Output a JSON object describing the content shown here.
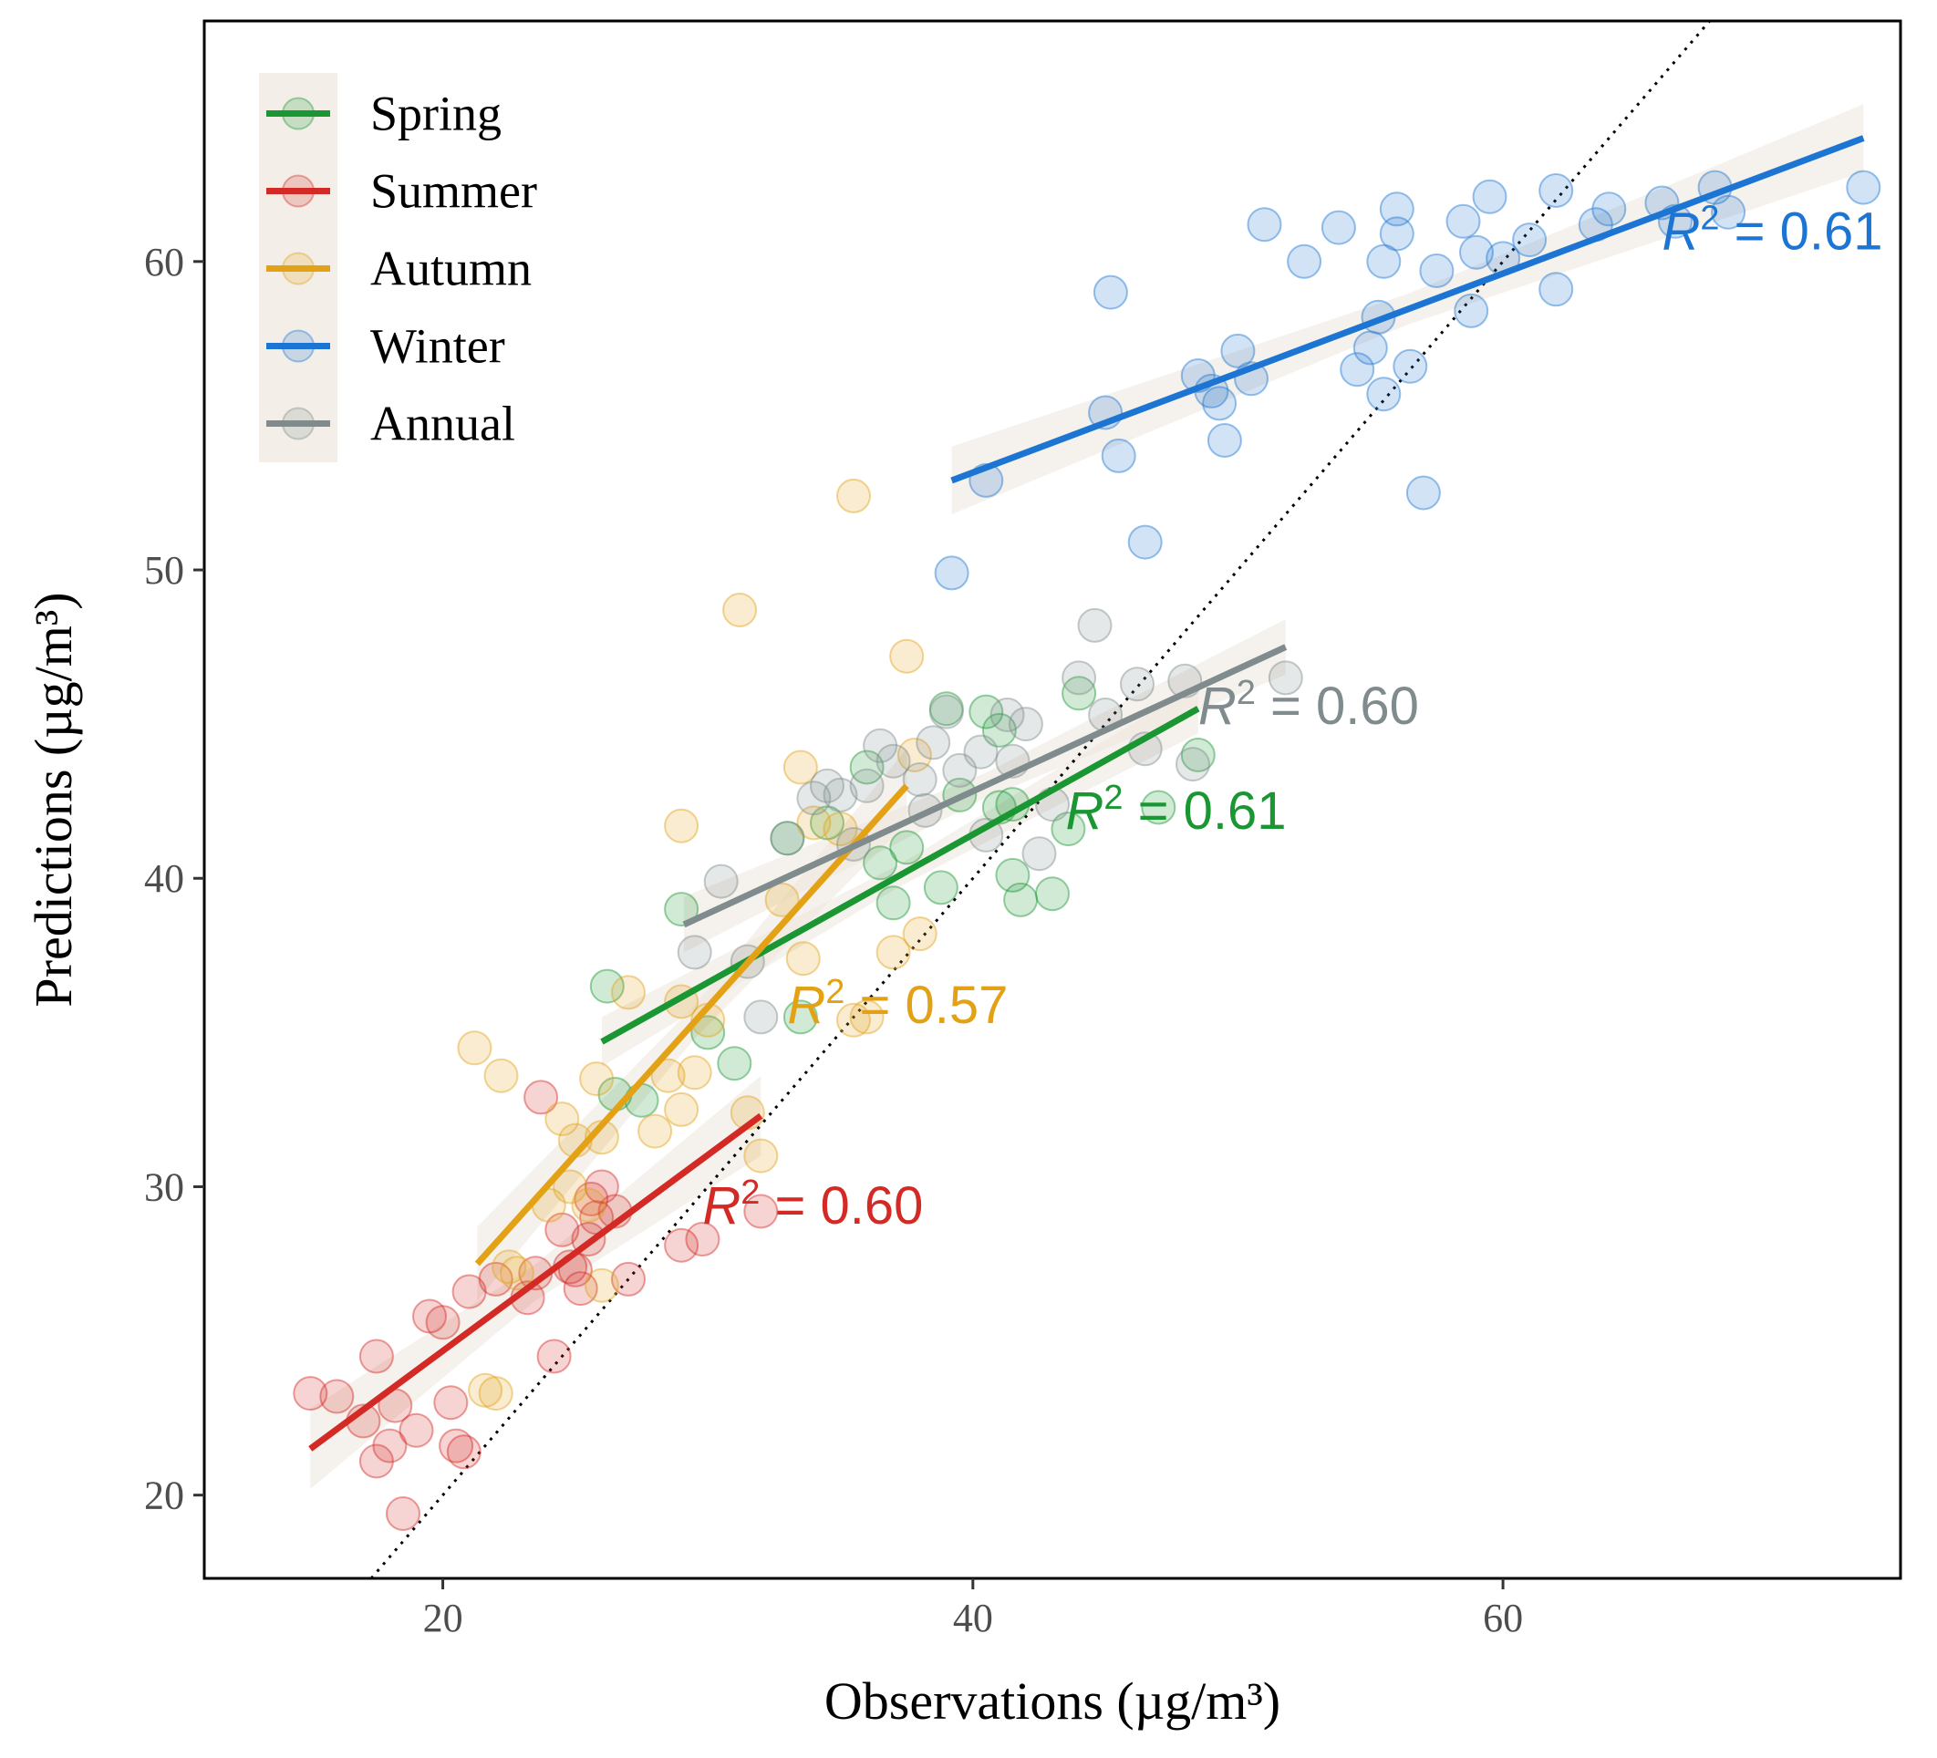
{
  "chart_data": {
    "type": "scatter",
    "xlabel": "Observations (µg/m³)",
    "ylabel": "Predictions (µg/m³)",
    "xlim": [
      11,
      75
    ],
    "ylim": [
      17.3,
      67.8
    ],
    "x_ticks": [
      20,
      40,
      60
    ],
    "y_ticks": [
      20,
      30,
      40,
      50,
      60
    ],
    "grid": false,
    "legend_position": "top-left",
    "reference_line": {
      "type": "1:1",
      "style": "dotted"
    },
    "series": [
      {
        "name": "Spring",
        "color": "#1a9632",
        "r2_label": "R² = 0.61",
        "r2_value": "0.61",
        "r2_anchor": [
          43.5,
          41.6
        ],
        "fit": {
          "x": [
            26,
            48.5
          ],
          "y": [
            34.7,
            45.5
          ],
          "ci_halfwidth": 0.8
        },
        "points": [
          [
            26.2,
            36.5
          ],
          [
            26.5,
            33.0
          ],
          [
            27.5,
            32.8
          ],
          [
            29,
            39.0
          ],
          [
            30,
            35.0
          ],
          [
            31,
            34.0
          ],
          [
            33,
            41.3
          ],
          [
            34.5,
            41.8
          ],
          [
            33.5,
            35.5
          ],
          [
            36,
            43.6
          ],
          [
            36.5,
            40.5
          ],
          [
            37,
            39.2
          ],
          [
            38.8,
            39.7
          ],
          [
            39,
            45.5
          ],
          [
            39.5,
            42.7
          ],
          [
            40.5,
            45.4
          ],
          [
            41,
            44.8
          ],
          [
            41.5,
            42.4
          ],
          [
            41.5,
            40.1
          ],
          [
            41.8,
            39.3
          ],
          [
            43,
            39.5
          ],
          [
            43.6,
            41.6
          ],
          [
            44,
            46.0
          ],
          [
            47,
            42.3
          ],
          [
            48.5,
            44.0
          ],
          [
            41,
            42.3
          ],
          [
            37.5,
            41.0
          ]
        ]
      },
      {
        "name": "Summer",
        "color": "#d42a25",
        "r2_label": "R² = 0.60",
        "r2_value": "0.60",
        "r2_anchor": [
          29.8,
          28.8
        ],
        "fit": {
          "x": [
            15,
            32
          ],
          "y": [
            21.5,
            32.3
          ],
          "ci_halfwidth": 1.3
        },
        "points": [
          [
            15,
            23.3
          ],
          [
            16,
            23.2
          ],
          [
            17,
            22.4
          ],
          [
            17.5,
            24.5
          ],
          [
            17.5,
            21.1
          ],
          [
            18,
            21.6
          ],
          [
            18.2,
            22.9
          ],
          [
            18.5,
            19.4
          ],
          [
            19,
            22.1
          ],
          [
            19.5,
            25.8
          ],
          [
            20,
            25.6
          ],
          [
            20.3,
            23.0
          ],
          [
            20.5,
            21.6
          ],
          [
            20.8,
            21.4
          ],
          [
            21,
            26.6
          ],
          [
            22,
            27.0
          ],
          [
            23.2,
            26.4
          ],
          [
            23.5,
            27.2
          ],
          [
            23.7,
            32.9
          ],
          [
            24.2,
            24.5
          ],
          [
            24.5,
            28.6
          ],
          [
            24.8,
            27.4
          ],
          [
            25,
            27.3
          ],
          [
            25.2,
            26.7
          ],
          [
            25.5,
            28.3
          ],
          [
            25.8,
            29.0
          ],
          [
            26,
            30.0
          ],
          [
            26.5,
            29.2
          ],
          [
            27,
            27.0
          ],
          [
            29,
            28.1
          ],
          [
            29.8,
            28.3
          ],
          [
            32,
            29.2
          ],
          [
            25.6,
            29.6
          ]
        ]
      },
      {
        "name": "Autumn",
        "color": "#e3a116",
        "r2_label": "R² = 0.57",
        "r2_value": "0.57",
        "r2_anchor": [
          33,
          35.3
        ],
        "fit": {
          "x": [
            21.3,
            37.5
          ],
          "y": [
            27.5,
            43.0
          ],
          "ci_halfwidth": 1.2
        },
        "points": [
          [
            21.2,
            34.5
          ],
          [
            21.6,
            23.4
          ],
          [
            22,
            23.3
          ],
          [
            22.2,
            33.6
          ],
          [
            22.5,
            27.4
          ],
          [
            22.8,
            27.2
          ],
          [
            24,
            29.4
          ],
          [
            24.5,
            32.2
          ],
          [
            24.8,
            30.0
          ],
          [
            25,
            31.5
          ],
          [
            25.5,
            29.4
          ],
          [
            26,
            31.6
          ],
          [
            25.8,
            33.5
          ],
          [
            26,
            26.8
          ],
          [
            27,
            36.3
          ],
          [
            28,
            31.8
          ],
          [
            28.5,
            33.6
          ],
          [
            29,
            36.0
          ],
          [
            29,
            32.5
          ],
          [
            29,
            41.7
          ],
          [
            29.5,
            33.7
          ],
          [
            30,
            35.4
          ],
          [
            31.2,
            48.7
          ],
          [
            31.5,
            32.4
          ],
          [
            32,
            31.0
          ],
          [
            33.5,
            43.6
          ],
          [
            33.6,
            37.4
          ],
          [
            34,
            41.8
          ],
          [
            35,
            41.6
          ],
          [
            35.5,
            52.4
          ],
          [
            35.5,
            35.4
          ],
          [
            36,
            35.5
          ],
          [
            37,
            37.6
          ],
          [
            37.5,
            47.2
          ],
          [
            38,
            38.2
          ],
          [
            37.8,
            44.0
          ],
          [
            32.8,
            39.3
          ]
        ]
      },
      {
        "name": "Winter",
        "color": "#1c75d3",
        "r2_label": "R² = 0.61",
        "r2_value": "0.61",
        "r2_anchor": [
          66,
          60.4
        ],
        "fit": {
          "x": [
            39.2,
            73.6
          ],
          "y": [
            52.9,
            64.0
          ],
          "ci_halfwidth": 1.1
        },
        "points": [
          [
            39.2,
            49.9
          ],
          [
            40.5,
            52.9
          ],
          [
            45,
            55.1
          ],
          [
            45.2,
            59.0
          ],
          [
            45.5,
            53.7
          ],
          [
            46.5,
            50.9
          ],
          [
            48.5,
            56.3
          ],
          [
            49,
            55.8
          ],
          [
            49.3,
            55.4
          ],
          [
            49.5,
            54.2
          ],
          [
            50,
            57.1
          ],
          [
            50.5,
            56.2
          ],
          [
            51,
            61.2
          ],
          [
            52.5,
            60.0
          ],
          [
            53.8,
            61.1
          ],
          [
            54.5,
            56.5
          ],
          [
            55,
            57.2
          ],
          [
            55.3,
            58.2
          ],
          [
            55.5,
            55.7
          ],
          [
            55.5,
            60.0
          ],
          [
            56,
            61.7
          ],
          [
            56,
            60.9
          ],
          [
            56.5,
            56.6
          ],
          [
            57,
            52.5
          ],
          [
            57.5,
            59.7
          ],
          [
            58.5,
            61.3
          ],
          [
            58.8,
            58.4
          ],
          [
            59,
            60.3
          ],
          [
            59.5,
            62.1
          ],
          [
            60,
            60.1
          ],
          [
            61,
            60.7
          ],
          [
            62,
            62.3
          ],
          [
            62,
            59.1
          ],
          [
            63.5,
            61.2
          ],
          [
            64,
            61.7
          ],
          [
            66,
            61.9
          ],
          [
            66.5,
            61.3
          ],
          [
            68,
            62.4
          ],
          [
            68.5,
            61.6
          ],
          [
            73.6,
            62.4
          ]
        ]
      },
      {
        "name": "Annual",
        "color": "#7f8b8c",
        "r2_label": "R² = 0.60",
        "r2_value": "0.60",
        "r2_anchor": [
          48.5,
          45.0
        ],
        "fit": {
          "x": [
            29.1,
            51.8
          ],
          "y": [
            38.5,
            47.5
          ],
          "ci_halfwidth": 0.9
        },
        "points": [
          [
            29.5,
            37.6
          ],
          [
            30.5,
            39.9
          ],
          [
            31.5,
            37.3
          ],
          [
            32,
            35.5
          ],
          [
            33,
            41.3
          ],
          [
            34,
            42.6
          ],
          [
            35,
            42.7
          ],
          [
            35.5,
            41.1
          ],
          [
            36.5,
            44.3
          ],
          [
            37,
            43.8
          ],
          [
            38,
            43.2
          ],
          [
            38.5,
            44.4
          ],
          [
            39,
            45.4
          ],
          [
            39.5,
            43.5
          ],
          [
            40.3,
            44.1
          ],
          [
            40.5,
            41.4
          ],
          [
            41.3,
            45.3
          ],
          [
            42,
            45.0
          ],
          [
            41.5,
            43.8
          ],
          [
            42.5,
            40.8
          ],
          [
            43,
            42.4
          ],
          [
            44,
            46.5
          ],
          [
            44.6,
            48.2
          ],
          [
            45,
            45.3
          ],
          [
            46.2,
            46.3
          ],
          [
            48,
            46.4
          ],
          [
            48.3,
            43.7
          ],
          [
            51.8,
            46.5
          ],
          [
            34.5,
            43.0
          ],
          [
            46.5,
            44.2
          ],
          [
            36,
            43.0
          ],
          [
            38.2,
            42.2
          ]
        ]
      }
    ]
  }
}
